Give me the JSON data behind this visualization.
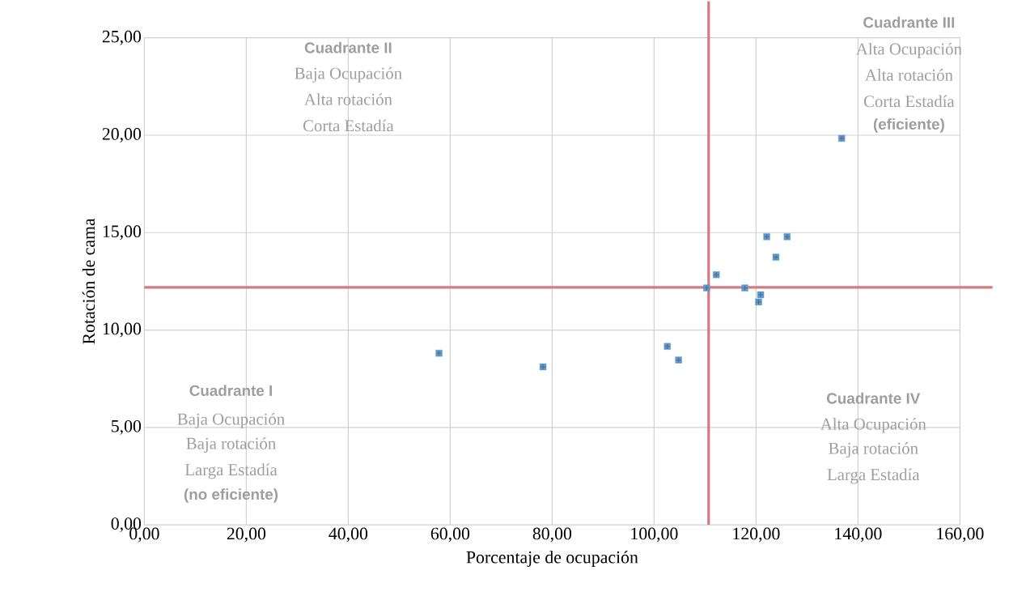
{
  "chart_data": {
    "type": "scatter",
    "xlabel": "Porcentaje de ocupación",
    "ylabel": "Rotación de cama",
    "x": [
      57.8,
      78.2,
      102.6,
      104.8,
      110.3,
      112.2,
      117.8,
      120.9,
      120.5,
      122.1,
      126.1,
      123.9,
      136.8
    ],
    "values": [
      8.81,
      8.11,
      9.16,
      8.46,
      12.16,
      12.84,
      12.16,
      11.81,
      11.44,
      14.79,
      14.79,
      13.74,
      19.84
    ],
    "color": "#5b9bd5",
    "marker": "square",
    "xlim": [
      0,
      160
    ],
    "ylim": [
      0,
      25
    ],
    "xticks": [
      {
        "value": 0,
        "label": "0,00"
      },
      {
        "value": 20,
        "label": "20,00"
      },
      {
        "value": 40,
        "label": "40,00"
      },
      {
        "value": 60,
        "label": "60,00"
      },
      {
        "value": 80,
        "label": "80,00"
      },
      {
        "value": 100,
        "label": "100,00"
      },
      {
        "value": 120,
        "label": "120,00"
      },
      {
        "value": 140,
        "label": "140,00"
      },
      {
        "value": 160,
        "label": "160,00"
      }
    ],
    "yticks": [
      {
        "value": 0,
        "label": "0,00"
      },
      {
        "value": 5,
        "label": "5,00"
      },
      {
        "value": 10,
        "label": "10,00"
      },
      {
        "value": 15,
        "label": "15,00"
      },
      {
        "value": 20,
        "label": "20,00"
      },
      {
        "value": 25,
        "label": "25,00"
      }
    ],
    "grid": true,
    "ref_lines": [
      {
        "axis": "x",
        "value": 110.7,
        "color": "#d47a80"
      },
      {
        "axis": "y",
        "value": 12.19,
        "color": "#d47a80"
      }
    ],
    "annotations": [
      "Cuadrante I",
      "Baja Ocupación",
      "Baja rotación",
      "Larga Estadía",
      "(no eficiente)",
      "Cuadrante II",
      "Baja Ocupación",
      "Alta rotación",
      "Corta Estadía",
      "Cuadrante III",
      "Alta Ocupación",
      "Alta rotación",
      "Corta Estadía",
      "(eficiente)",
      "Cuadrante IV",
      "Alta Ocupación",
      "Baja rotación",
      "Larga Estadía"
    ]
  }
}
